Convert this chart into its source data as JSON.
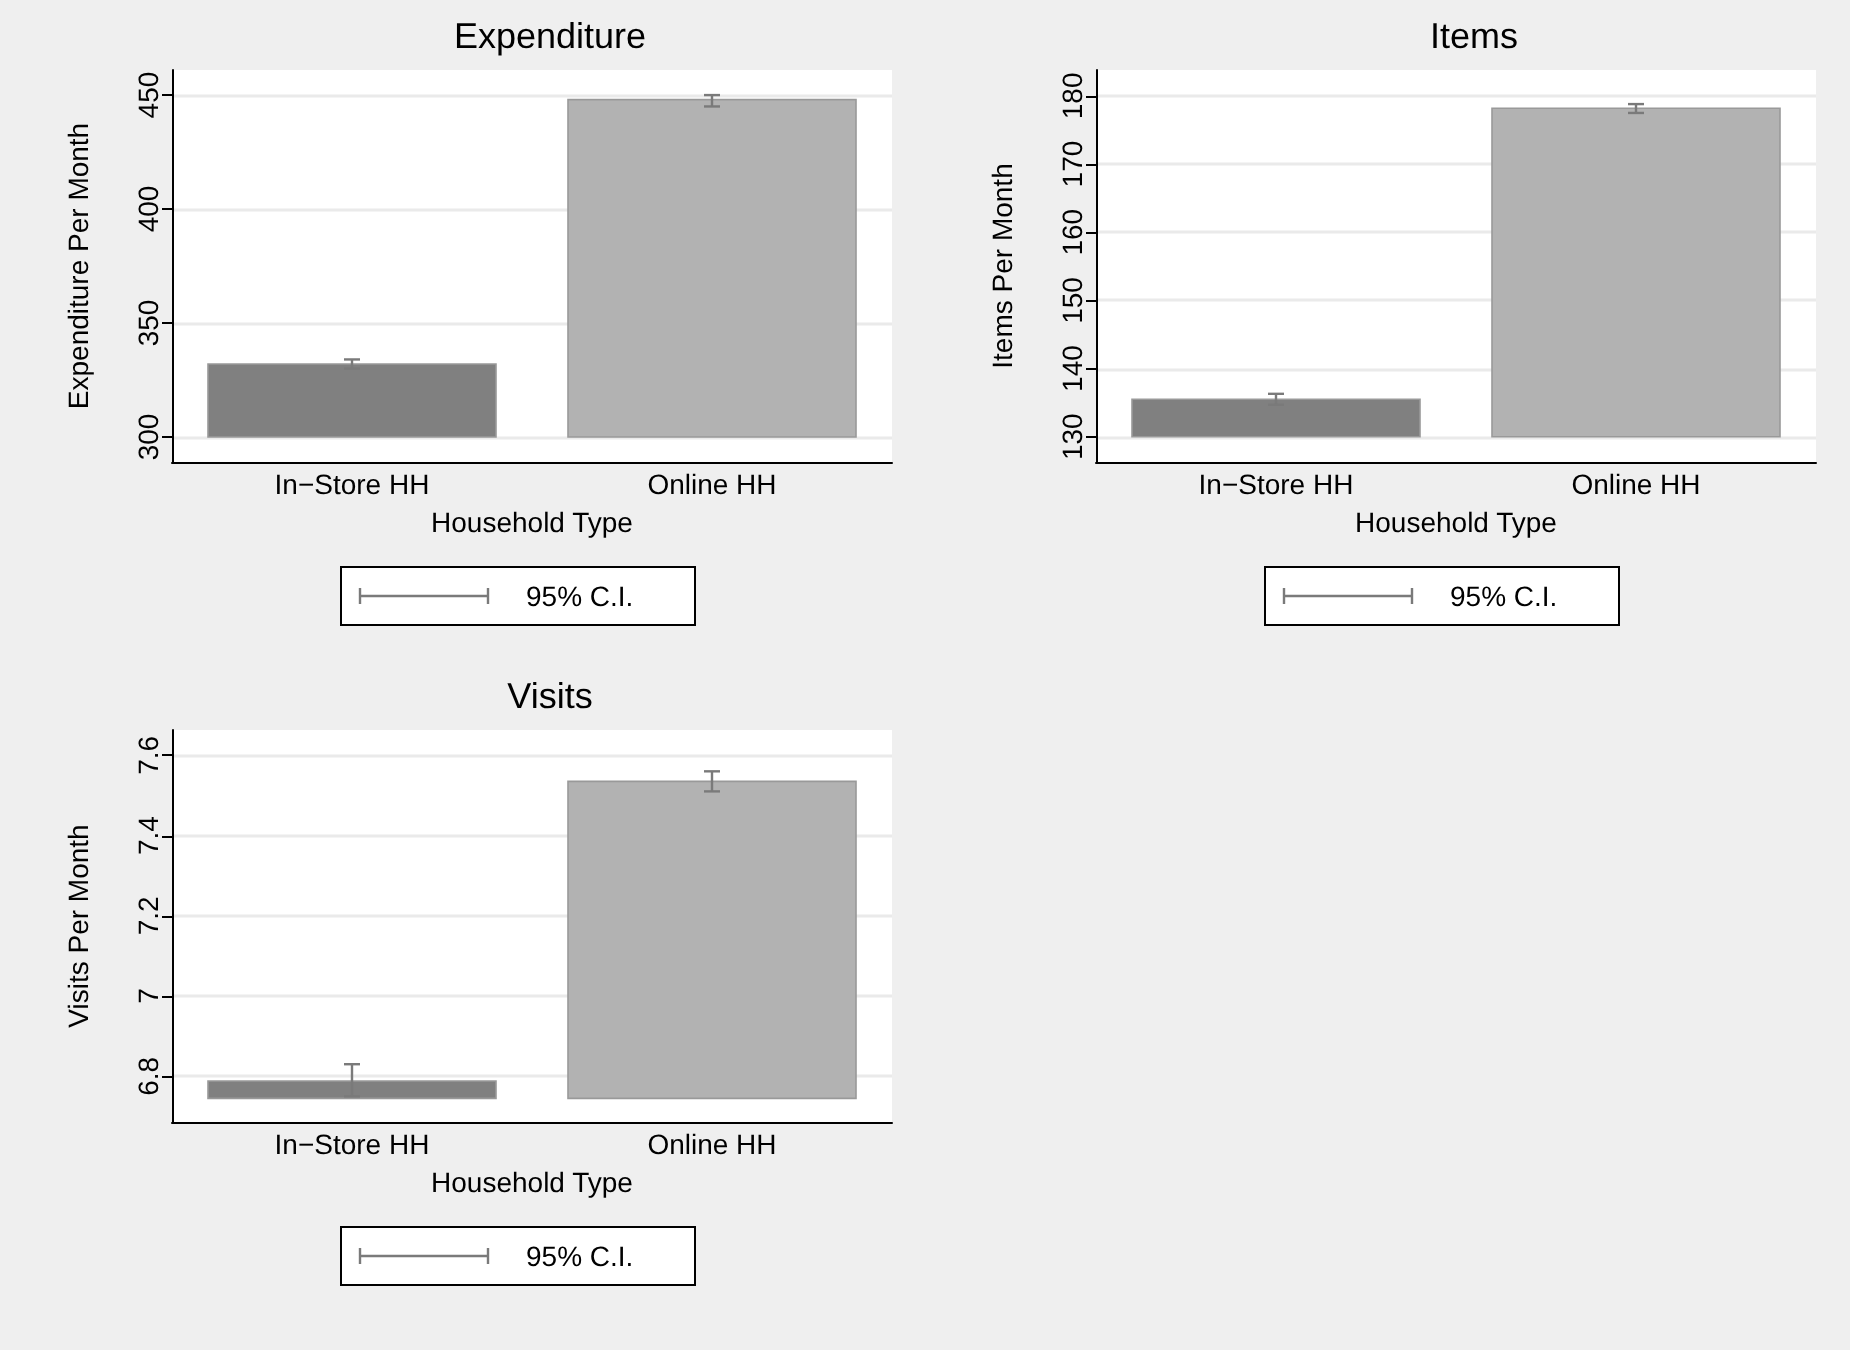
{
  "chart_data": [
    {
      "type": "bar",
      "title": "Expenditure",
      "xlabel": "Household Type",
      "ylabel": "Expenditure Per Month",
      "categories": [
        "In−Store HH",
        "Online HH"
      ],
      "base": [
        300,
        300
      ],
      "values": [
        32,
        148
      ],
      "colors": [
        "#808080",
        "#b2b2b2"
      ],
      "errors": [
        [
          330,
          334
        ],
        [
          445,
          450
        ]
      ],
      "ylim": [
        289,
        461
      ],
      "yticks": [
        300,
        350,
        400,
        450
      ],
      "grid": "y",
      "legend_title": "95% C.I."
    },
    {
      "type": "bar",
      "title": "Items",
      "xlabel": "Household Type",
      "ylabel": "Items Per Month",
      "categories": [
        "In−Store HH",
        "Online HH"
      ],
      "base": [
        130,
        130
      ],
      "values": [
        5.5,
        48.2
      ],
      "colors": [
        "#808080",
        "#b2b2b2"
      ],
      "errors": [
        [
          134.7,
          136.3
        ],
        [
          177.5,
          178.8
        ]
      ],
      "ylim": [
        126.3,
        183.8
      ],
      "yticks": [
        130,
        140,
        150,
        160,
        170,
        180
      ],
      "grid": "y",
      "legend_title": "95% C.I."
    },
    {
      "type": "bar",
      "title": "Visits",
      "xlabel": "Household Type",
      "ylabel": "Visits Per Month",
      "categories": [
        "In−Store HH",
        "Online HH"
      ],
      "base": [
        6.745,
        6.745
      ],
      "values": [
        0.043,
        0.79
      ],
      "colors": [
        "#808080",
        "#b2b2b2"
      ],
      "errors": [
        [
          6.75,
          6.83
        ],
        [
          7.51,
          7.56
        ]
      ],
      "ylim": [
        6.686,
        7.663
      ],
      "yticks": [
        6.8,
        7,
        7.2,
        7.4,
        7.6
      ],
      "grid": "y",
      "legend_title": "95% C.I."
    }
  ]
}
